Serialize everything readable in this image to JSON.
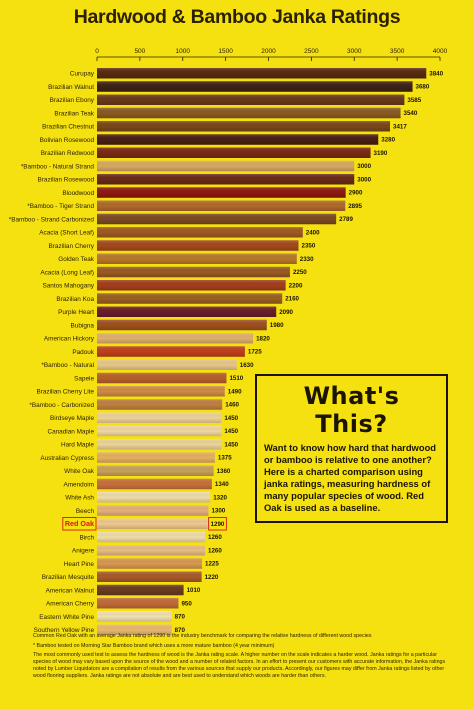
{
  "chart_data": {
    "type": "bar",
    "title": "Hardwood & Bamboo Janka Ratings",
    "xlim": [
      0,
      4000
    ],
    "xticks": [
      "0",
      "500",
      "1000",
      "1500",
      "2000",
      "2500",
      "3000",
      "3500",
      "4000"
    ],
    "categories": [
      "Curupay",
      "Brazilian Walnut",
      "Brazilian Ebony",
      "Brazilian Teak",
      "Brazilian Chestnut",
      "Bolivian Rosewood",
      "Brazilian Redwood",
      "*Bamboo - Natural Strand",
      "Brazilian Rosewood",
      "Bloodwood",
      "*Bamboo - Tiger Strand",
      "*Bamboo - Strand Carbonized",
      "Acacia (Short Leaf)",
      "Brazilian Cherry",
      "Golden Teak",
      "Acacia (Long Leaf)",
      "Santos Mahogany",
      "Brazilian Koa",
      "Purple Heart",
      "Bubigna",
      "American Hickory",
      "Padouk",
      "*Bamboo - Natural",
      "Sapele",
      "Brazilian Cherry Lite",
      "*Bamboo - Carbonized",
      "Birdseye Maple",
      "Canadian Maple",
      "Hard Maple",
      "Australian Cypress",
      "White Oak",
      "Amendoim",
      "White Ash",
      "Beech",
      "Red Oak",
      "Birch",
      "Anigere",
      "Heart Pine",
      "Brazilian Mesquite",
      "American Walnut",
      "American Cherry",
      "Eastern White Pine",
      "Southern Yellow Pine"
    ],
    "values": [
      3840,
      3680,
      3585,
      3540,
      3417,
      3280,
      3190,
      3000,
      3000,
      2900,
      2895,
      2789,
      2400,
      2350,
      2330,
      2250,
      2200,
      2160,
      2090,
      1980,
      1820,
      1725,
      1630,
      1510,
      1490,
      1460,
      1450,
      1450,
      1450,
      1375,
      1360,
      1340,
      1320,
      1300,
      1290,
      1260,
      1260,
      1225,
      1220,
      1010,
      950,
      870,
      870
    ],
    "highlight": "Red Oak",
    "bar_colors": [
      "#5a2a10",
      "#3d2315",
      "#6a3a1a",
      "#8a5a22",
      "#7a4818",
      "#4a1e12",
      "#7a2a14",
      "#d8a860",
      "#6a2a16",
      "#8e1a10",
      "#b06a2a",
      "#7a4a22",
      "#a05a20",
      "#a44a1c",
      "#b8782a",
      "#9a5a22",
      "#a53e1c",
      "#9a6020",
      "#6a1e2a",
      "#a0501e",
      "#e0b070",
      "#c0401a",
      "#e8c888",
      "#b8602a",
      "#d08a44",
      "#c08040",
      "#efd29a",
      "#f1d7a0",
      "#ecd49a",
      "#e6b060",
      "#c8a058",
      "#c8703a",
      "#f0dca8",
      "#e6b07a",
      "#f0c890",
      "#f1dcaa",
      "#e8bc84",
      "#d89850",
      "#a85a2a",
      "#6a3a20",
      "#c06a38",
      "#f2e0b0",
      "#e8b870"
    ],
    "highlight_color": "#d8161b"
  },
  "info": {
    "title": "What's This?",
    "body": "Want to know how hard that hardwood or bamboo is relative to one another? Here is a charted comparison using janka ratings, measuring hardness of many popular species of wood. Red Oak is used as a baseline."
  },
  "footer": {
    "line1": "Common Red Oak with an average Janka rating of 1290 is the industry benchmark for comparing the relative hardness of different wood species",
    "line2": "* Bamboo tested on Morning Star Bamboo brand which uses a more mature bamboo (4 year minimum)",
    "line3": "The most commonly used test to assess the hardness of wood is the Janka rating scale. A higher number on the scale indicates a harder wood. Janka ratings for a particular species of wood may vary based upon the source of the wood and a number of related factors. In an effort to present our customers with accurate information, the Janka ratings noted by Lumber Liquidators are a compilation of results from the various sources that supply our products. Accordingly, our figures may differ from Janka ratings listed by other wood flooring suppliers. Janka ratings are not absolute and are best used to understand which woods are harder than others."
  }
}
